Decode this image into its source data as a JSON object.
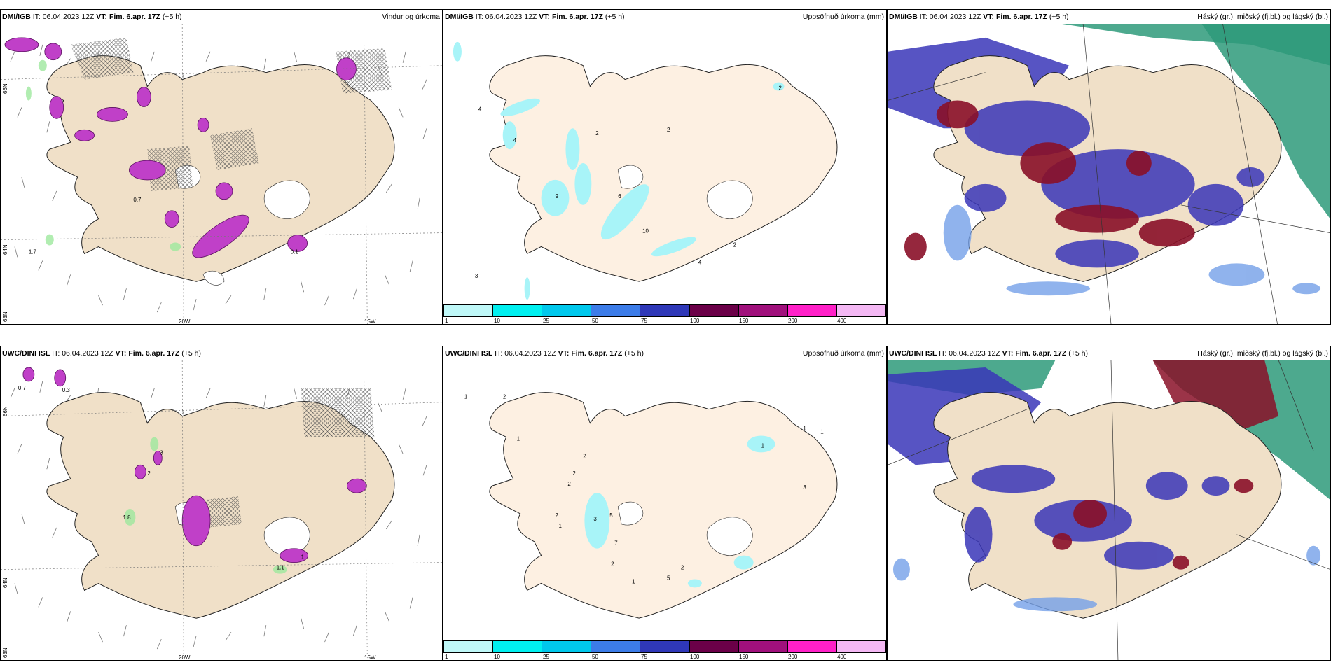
{
  "rows": [
    {
      "panels": [
        {
          "model": "DMI/IGB",
          "it_label": "IT:",
          "it": "06.04.2023 12Z",
          "vt_label": "VT:",
          "vt": "Fim. 6.apr. 17Z",
          "lead": "(+5 h)",
          "right": "Vindur og úrkoma"
        },
        {
          "model": "DMI/IGB",
          "it_label": "IT:",
          "it": "06.04.2023 12Z",
          "vt_label": "VT:",
          "vt": "Fim. 6.apr. 17Z",
          "lead": "(+5 h)",
          "right": "Uppsöfnuð úrkoma (mm)"
        },
        {
          "model": "DMI/IGB",
          "it_label": "IT:",
          "it": "06.04.2023 12Z",
          "vt_label": "VT:",
          "vt": "Fim. 6.apr. 17Z",
          "lead": "(+5 h)",
          "right": "Háský (gr.), miðský (fj.bl.) og lágský (bl.)"
        }
      ],
      "wind_numbers": [
        "0.7",
        "1.7",
        "0.1"
      ],
      "precip_numbers": [
        "4",
        "2",
        "4",
        "2",
        "2",
        "9",
        "6",
        "10",
        "3",
        "4",
        "2"
      ]
    },
    {
      "panels": [
        {
          "model": "UWC/DINI ISL",
          "it_label": "IT:",
          "it": "06.04.2023 12Z",
          "vt_label": "VT:",
          "vt": "Fim. 6.apr. 17Z",
          "lead": "(+5 h)",
          "right": ""
        },
        {
          "model": "UWC/DINI ISL",
          "it_label": "IT:",
          "it": "06.04.2023 12Z",
          "vt_label": "VT:",
          "vt": "Fim. 6.apr. 17Z",
          "lead": "(+5 h)",
          "right": "Uppsöfnuð úrkoma (mm)"
        },
        {
          "model": "UWC/DINI ISL",
          "it_label": "IT:",
          "it": "06.04.2023 12Z",
          "vt_label": "VT:",
          "vt": "Fim. 6.apr. 17Z",
          "lead": "(+5 h)",
          "right": "Háský (gr.), miðský (fj.bl.) og lágský (bl.)"
        }
      ],
      "wind_numbers": [
        "0.7",
        "0.3",
        "3",
        "2",
        "1.8",
        "1.1",
        "1"
      ],
      "precip_numbers": [
        "1",
        "2",
        "1",
        "2",
        "2",
        "2",
        "1",
        "2",
        "3",
        "5",
        "7",
        "1",
        "2",
        "5",
        "2",
        "1",
        "1",
        "1",
        "3"
      ]
    }
  ],
  "axis_labels": {
    "lat66": "66N",
    "lat64": "64N",
    "lat63": "63N",
    "lon20": "20W",
    "lon15": "15W"
  },
  "colorbar": {
    "labels": [
      "1",
      "10",
      "25",
      "50",
      "75",
      "100",
      "150",
      "200",
      "400"
    ],
    "colors": [
      "#bff8f8",
      "#00f0f0",
      "#00c8ec",
      "#3c7ce8",
      "#2f38b8",
      "#6b0048",
      "#a0107c",
      "#ff20c8",
      "#f4b8f4"
    ]
  },
  "colors": {
    "land": "#f0e0c8",
    "land_light": "#fdf0e2",
    "cloud_high": "#2e9a7a",
    "cloud_mid": "#3a36b8",
    "cloud_low": "#74a0e8",
    "precip_pink": "#c040c8",
    "precip_cyan": "#a8f4f8",
    "cloud_dark": "#8a1028"
  }
}
